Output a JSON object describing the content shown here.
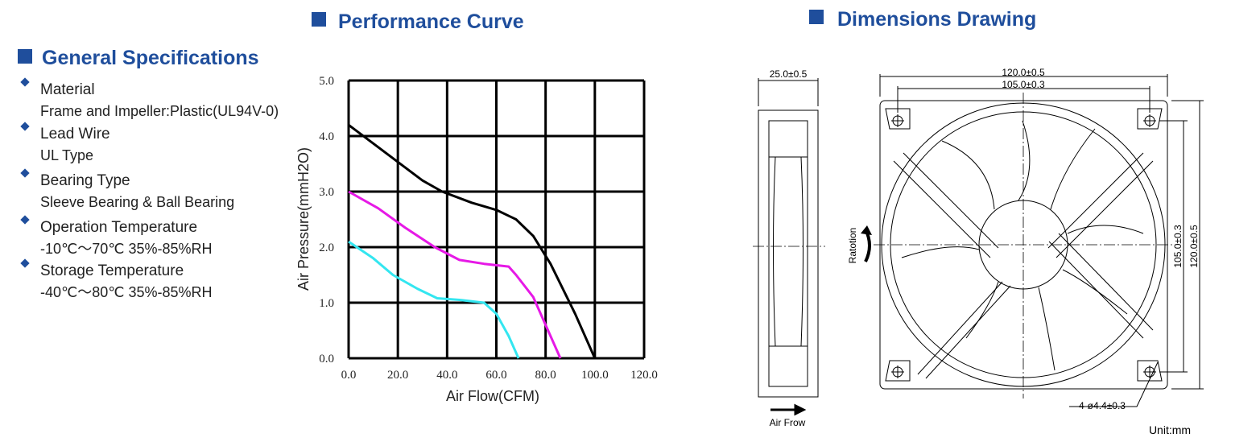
{
  "specs": {
    "title": "General Specifications",
    "items": [
      {
        "label": "Material",
        "value": "Frame and Impeller:Plastic(UL94V-0)"
      },
      {
        "label": "Lead Wire",
        "value": "UL Type"
      },
      {
        "label": "Bearing Type",
        "value": "Sleeve Bearing & Ball Bearing"
      },
      {
        "label": "Operation Temperature",
        "value": "-10℃～70℃  35%-85%RH"
      },
      {
        "label": "Storage Temperature",
        "value": "-40℃～80℃  35%-85%RH"
      }
    ]
  },
  "chart_data": {
    "type": "line",
    "title": "Performance Curve",
    "x_label": "Air Flow(CFM)",
    "y_label": "Air Pressure(mmH2O)",
    "xlim": [
      0,
      120
    ],
    "ylim": [
      0,
      5
    ],
    "xticks": [
      {
        "value": 0,
        "label": "0.0"
      },
      {
        "value": 20,
        "label": "20.0"
      },
      {
        "value": 40,
        "label": "40.0"
      },
      {
        "value": 60,
        "label": "60.0"
      },
      {
        "value": 80,
        "label": "80.0"
      },
      {
        "value": 100,
        "label": "100.0"
      },
      {
        "value": 120,
        "label": "120.0"
      }
    ],
    "yticks": [
      {
        "value": 0,
        "label": "0.0"
      },
      {
        "value": 1,
        "label": "1.0"
      },
      {
        "value": 2,
        "label": "2.0"
      },
      {
        "value": 3,
        "label": "3.0"
      },
      {
        "value": 4,
        "label": "4.0"
      },
      {
        "value": 5,
        "label": "5.0"
      }
    ],
    "grid": true,
    "series": [
      {
        "color": "#000000",
        "x": [
          0,
          15,
          30,
          38,
          50,
          60,
          68,
          75,
          82,
          92,
          100
        ],
        "values": [
          4.2,
          3.7,
          3.2,
          3.0,
          2.8,
          2.67,
          2.5,
          2.2,
          1.7,
          0.8,
          0
        ]
      },
      {
        "color": "#e619e6",
        "x": [
          0,
          12,
          23,
          35,
          45,
          55,
          65,
          68,
          75,
          82,
          86
        ],
        "values": [
          3.0,
          2.7,
          2.35,
          2.0,
          1.77,
          1.7,
          1.65,
          1.5,
          1.1,
          0.4,
          0
        ]
      },
      {
        "color": "#33e6f0",
        "x": [
          0,
          10,
          18,
          28,
          36,
          45,
          55,
          60,
          65,
          69
        ],
        "values": [
          2.1,
          1.8,
          1.5,
          1.25,
          1.08,
          1.05,
          1.0,
          0.8,
          0.4,
          0
        ]
      }
    ]
  },
  "dimensions": {
    "title": "Dimensions Drawing",
    "depth": "25.0±0.5",
    "width": "120.0±0.5",
    "hole_spacing_x": "105.0±0.3",
    "hole_spacing_y": "105.0±0.3",
    "height": "120.0±0.5",
    "rotation": "Ratotion",
    "holes": "4-ø4.4±0.3",
    "air_flow": "Air Frow",
    "unit": "Unit:mm"
  }
}
